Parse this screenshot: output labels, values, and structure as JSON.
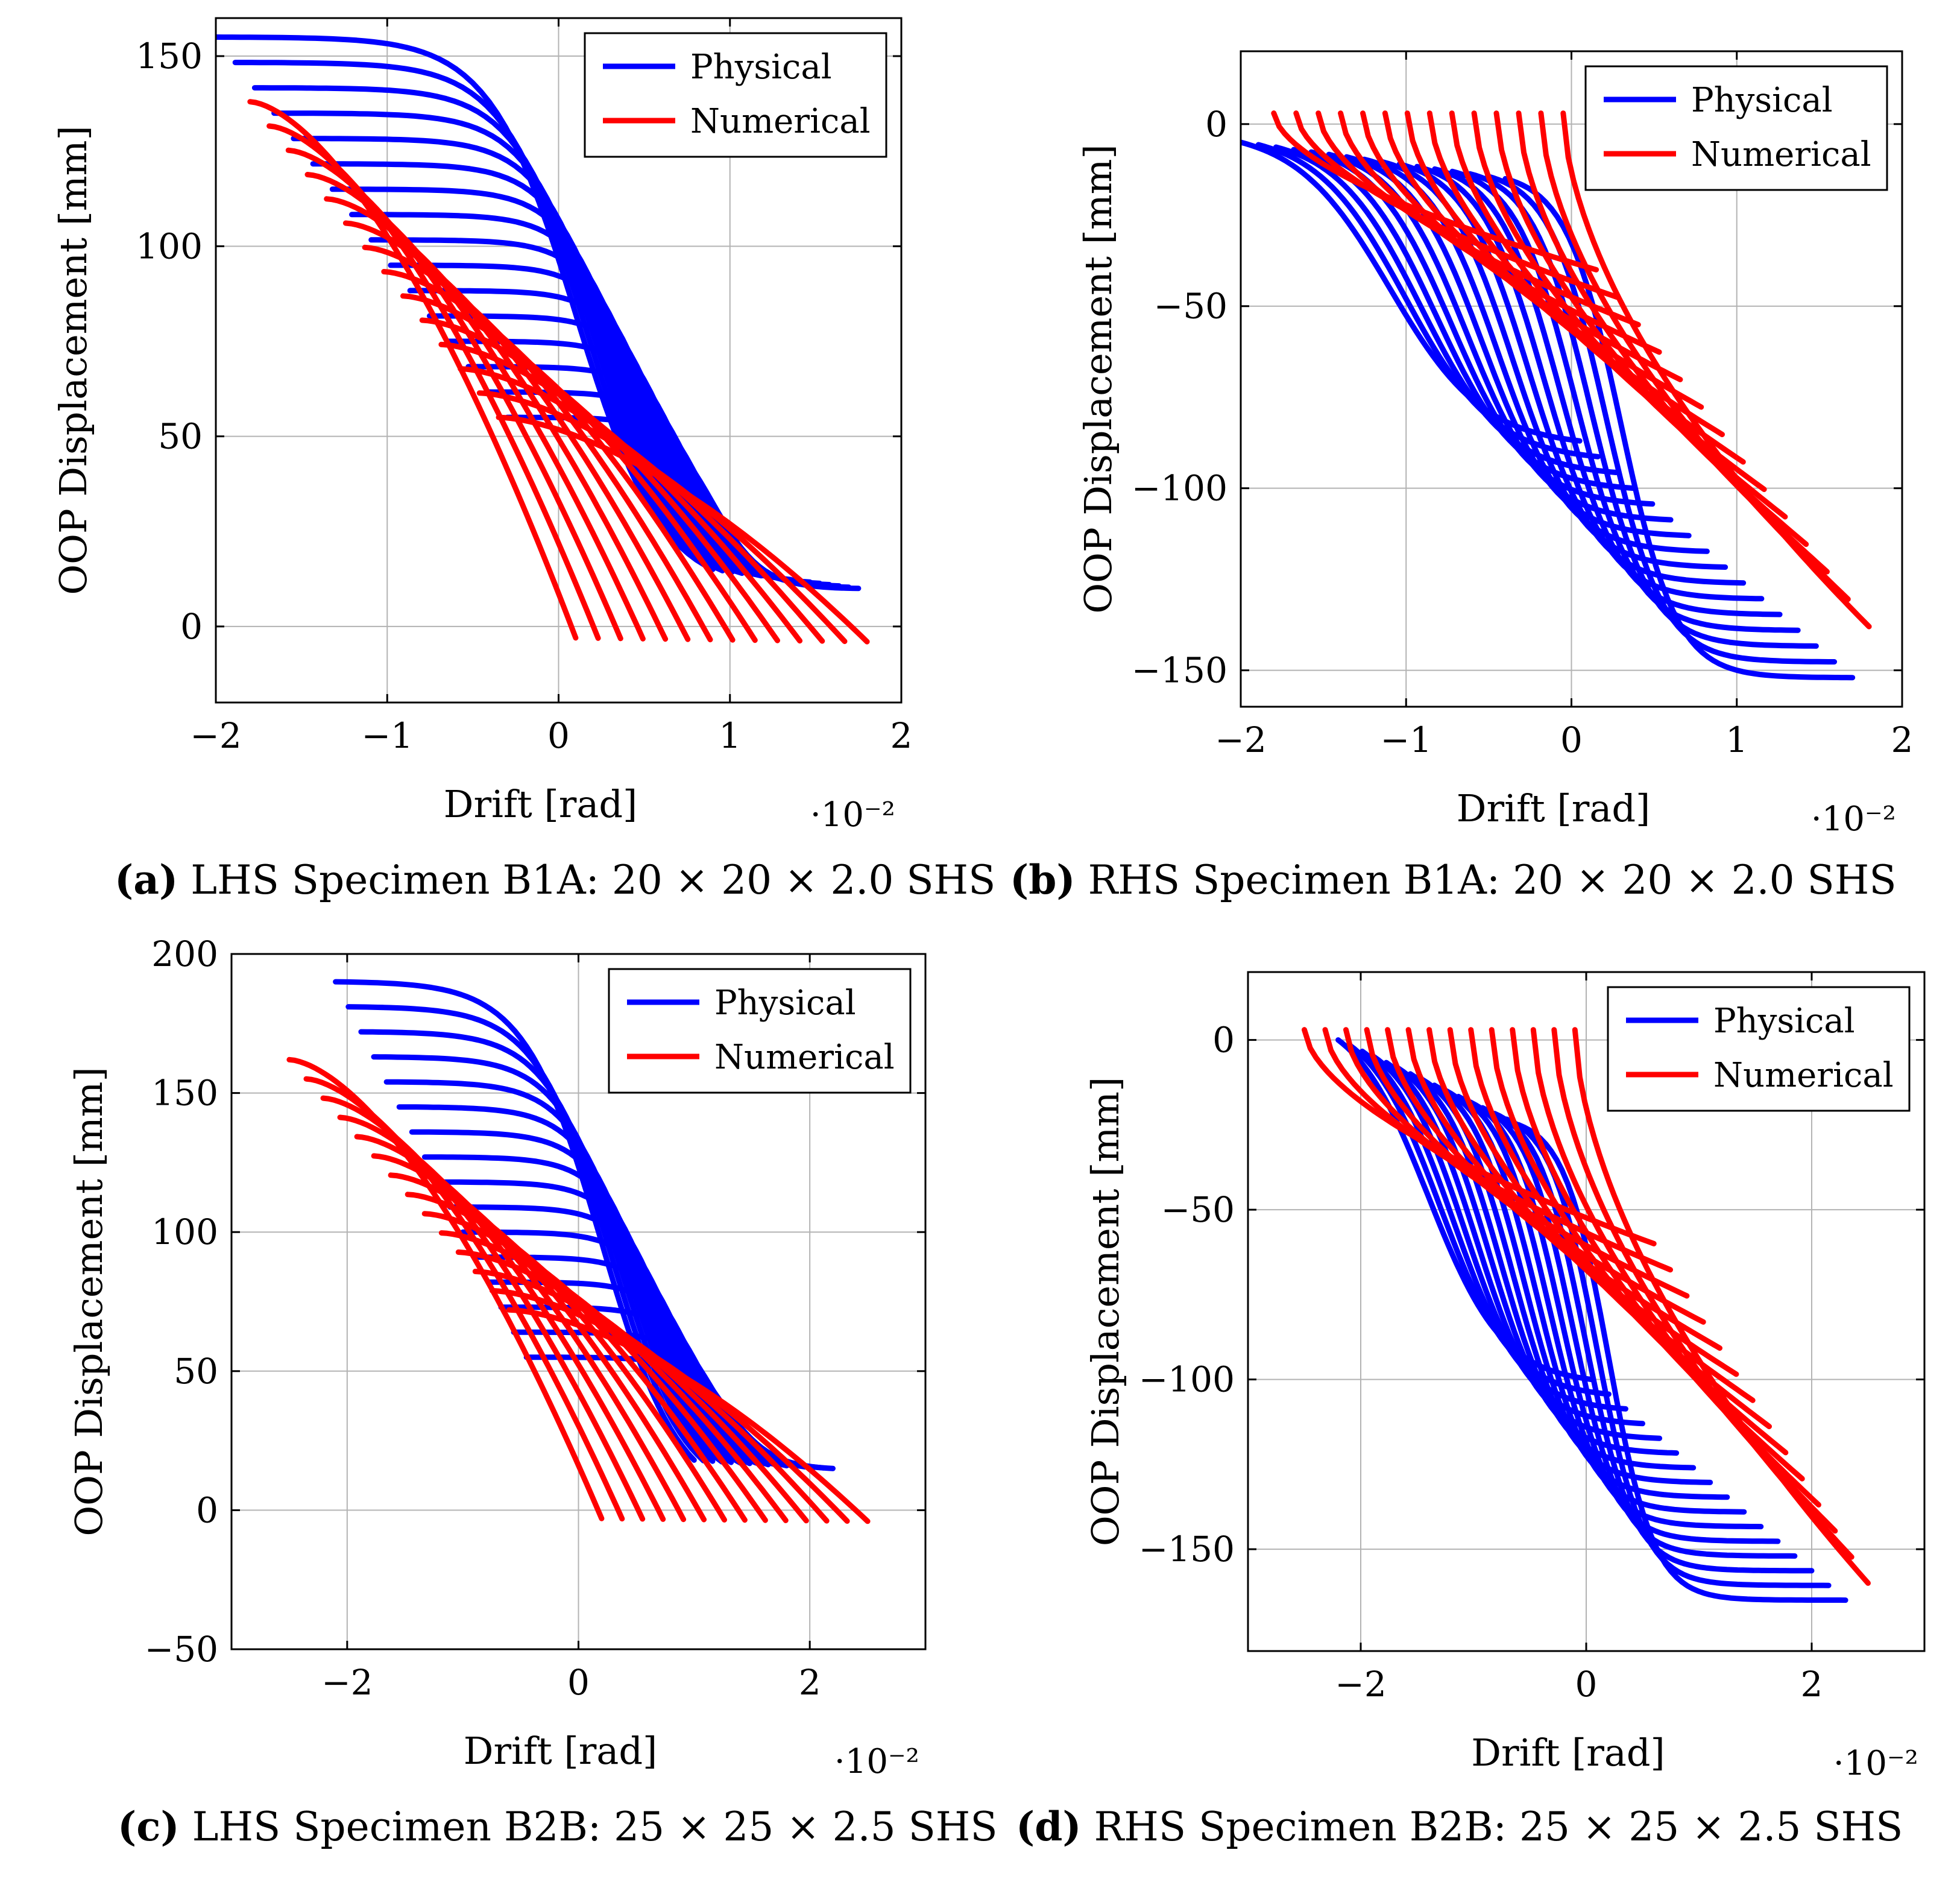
{
  "figure": {
    "panels": [
      {
        "letter": "(a)",
        "caption": "LHS Specimen B1A: 20 × 20 × 2.0 SHS"
      },
      {
        "letter": "(b)",
        "caption": "RHS Specimen B1A: 20 × 20 × 2.0 SHS"
      },
      {
        "letter": "(c)",
        "caption": "LHS Specimen B2B: 25 × 25 × 2.5 SHS"
      },
      {
        "letter": "(d)",
        "caption": "RHS Specimen B2B: 25 × 25 × 2.5 SHS"
      }
    ]
  },
  "colors": {
    "physical": "#0000ff",
    "numerical": "#ff0000",
    "grid": "#b3b3b3",
    "axis": "#000000"
  },
  "chart_data": [
    {
      "type": "line",
      "title": "",
      "xlabel": "Drift [rad]",
      "ylabel": "OOP Displacement [mm]",
      "x_scale_label": "·10⁻²",
      "xlim": [
        -2,
        2
      ],
      "ylim": [
        -20,
        160
      ],
      "xticks": [
        -2,
        -1,
        0,
        1,
        2
      ],
      "xtick_labels": [
        "−2",
        "−1",
        "0",
        "1",
        "2"
      ],
      "yticks": [
        0,
        50,
        100,
        150
      ],
      "ytick_labels": [
        "0",
        "50",
        "100",
        "150"
      ],
      "grid": true,
      "legend_position": "top-right",
      "legend": [
        "Physical",
        "Numerical"
      ],
      "series": [
        {
          "name": "Physical",
          "family": "sigmoid",
          "count": 16,
          "x_start": [
            -2.0,
            -0.3
          ],
          "x_end": [
            0.9,
            1.75
          ],
          "y_start": [
            155,
            55
          ],
          "y_end": [
            15,
            10
          ],
          "flat_x": 0.0,
          "flat_y": 0,
          "mid": [
            0.1,
            0.9
          ],
          "steep": [
            4,
            7
          ]
        },
        {
          "name": "Numerical",
          "family": "power",
          "count": 14,
          "x_start": [
            -1.8,
            -0.35
          ],
          "x_end": [
            0.1,
            1.8
          ],
          "y_start": [
            138,
            55
          ],
          "y_end": [
            -3,
            -4
          ],
          "shape": 1.6
        }
      ]
    },
    {
      "type": "line",
      "title": "",
      "xlabel": "Drift [rad]",
      "ylabel": "OOP Displacement [mm]",
      "x_scale_label": "·10⁻²",
      "xlim": [
        -2,
        2
      ],
      "ylim": [
        -160,
        20
      ],
      "xticks": [
        -2,
        -1,
        0,
        1,
        2
      ],
      "xtick_labels": [
        "−2",
        "−1",
        "0",
        "1",
        "2"
      ],
      "yticks": [
        -150,
        -100,
        -50,
        0
      ],
      "ytick_labels": [
        "−150",
        "−100",
        "−50",
        "0"
      ],
      "grid": true,
      "legend_position": "top-right",
      "legend": [
        "Physical",
        "Numerical"
      ],
      "series": [
        {
          "name": "Physical",
          "family": "sigmoid",
          "count": 16,
          "x_start": [
            -2.0,
            -0.4
          ],
          "x_end": [
            0.05,
            1.7
          ],
          "y_start": [
            -5,
            -15
          ],
          "y_end": [
            -87,
            -152
          ],
          "mid": [
            -1.1,
            0.3
          ],
          "steep": [
            3.5,
            6
          ]
        },
        {
          "name": "Numerical",
          "family": "power",
          "count": 14,
          "x_start": [
            -1.8,
            -0.05
          ],
          "x_end": [
            0.15,
            1.8
          ],
          "y_start": [
            3,
            3
          ],
          "y_end": [
            -40,
            -138
          ],
          "shape": 0.6
        }
      ]
    },
    {
      "type": "line",
      "title": "",
      "xlabel": "Drift [rad]",
      "ylabel": "OOP Displacement [mm]",
      "x_scale_label": "·10⁻²",
      "xlim": [
        -3,
        3
      ],
      "ylim": [
        -50,
        200
      ],
      "xticks": [
        -2,
        0,
        2
      ],
      "xtick_labels": [
        "−2",
        "0",
        "2"
      ],
      "yticks": [
        -50,
        0,
        50,
        100,
        150,
        200
      ],
      "ytick_labels": [
        "−50",
        "0",
        "50",
        "100",
        "150",
        "200"
      ],
      "grid": true,
      "legend_position": "top-right",
      "legend": [
        "Physical",
        "Numerical"
      ],
      "series": [
        {
          "name": "Physical",
          "family": "sigmoid",
          "count": 16,
          "x_start": [
            -2.1,
            -0.45
          ],
          "x_end": [
            1.0,
            2.2
          ],
          "y_start": [
            190,
            55
          ],
          "y_end": [
            18,
            15
          ],
          "mid": [
            0.2,
            1.3
          ],
          "steep": [
            3,
            5
          ]
        },
        {
          "name": "Numerical",
          "family": "power",
          "count": 14,
          "x_start": [
            -2.5,
            -0.6
          ],
          "x_end": [
            0.2,
            2.5
          ],
          "y_start": [
            162,
            72
          ],
          "y_end": [
            -3,
            -4
          ],
          "shape": 1.6
        }
      ]
    },
    {
      "type": "line",
      "title": "",
      "xlabel": "Drift [rad]",
      "ylabel": "OOP Displacement [mm]",
      "x_scale_label": "·10⁻²",
      "xlim": [
        -3,
        3
      ],
      "ylim": [
        -180,
        20
      ],
      "xticks": [
        -2,
        0,
        2
      ],
      "xtick_labels": [
        "−2",
        "0",
        "2"
      ],
      "yticks": [
        -150,
        -100,
        -50,
        0
      ],
      "ytick_labels": [
        "−150",
        "−100",
        "−50",
        "0"
      ],
      "grid": true,
      "legend_position": "top-right",
      "legend": [
        "Physical",
        "Numerical"
      ],
      "series": [
        {
          "name": "Physical",
          "family": "sigmoid",
          "count": 16,
          "x_start": [
            -2.2,
            -0.6
          ],
          "x_end": [
            0.05,
            2.3
          ],
          "y_start": [
            0,
            -25
          ],
          "y_end": [
            -100,
            -165
          ],
          "mid": [
            -1.4,
            0.2
          ],
          "steep": [
            3,
            5
          ]
        },
        {
          "name": "Numerical",
          "family": "power",
          "count": 14,
          "x_start": [
            -2.5,
            -0.1
          ],
          "x_end": [
            0.6,
            2.5
          ],
          "y_start": [
            3,
            3
          ],
          "y_end": [
            -60,
            -160
          ],
          "shape": 0.6
        }
      ]
    }
  ]
}
